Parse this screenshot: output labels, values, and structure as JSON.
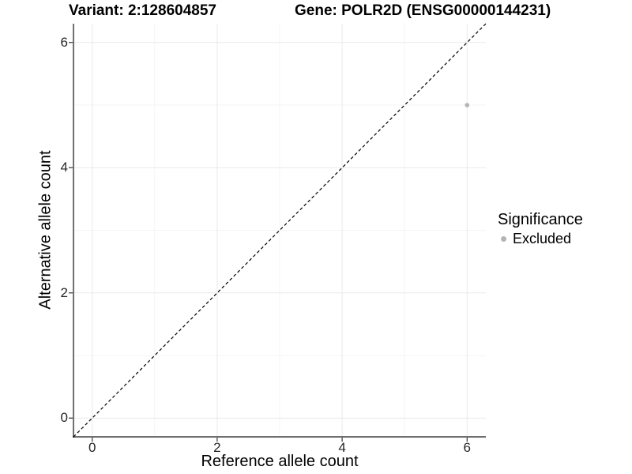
{
  "chart_data": {
    "type": "scatter",
    "titles": {
      "left": "Variant: 2:128604857",
      "right": "Gene: POLR2D (ENSG00000144231)"
    },
    "xlabel": "Reference allele count",
    "ylabel": "Alternative allele count",
    "xlim": [
      -0.3,
      6.3
    ],
    "ylim": [
      -0.3,
      6.3
    ],
    "xticks": [
      0,
      2,
      4,
      6
    ],
    "yticks": [
      0,
      2,
      4,
      6
    ],
    "major_gridlines_x": [
      0,
      2,
      4,
      6
    ],
    "major_gridlines_y": [
      0,
      2,
      4,
      6
    ],
    "minor_gridlines_x": [
      1,
      3,
      5
    ],
    "minor_gridlines_y": [
      1,
      3,
      5
    ],
    "grid": true,
    "series": [
      {
        "name": "Excluded",
        "color": "#b4b4b4",
        "points": [
          {
            "x": 6,
            "y": 5
          }
        ]
      }
    ],
    "reference_line": {
      "style": "dashed",
      "color": "#000000",
      "x0": -0.3,
      "y0": -0.3,
      "x1": 6.3,
      "y1": 6.3
    },
    "legend": {
      "title": "Significance",
      "position": "right",
      "entries": [
        {
          "label": "Excluded",
          "color": "#b4b4b4",
          "marker": "circle"
        }
      ]
    },
    "colors": {
      "background": "#ffffff",
      "grid_major": "#e9e9e9",
      "grid_minor": "#f4f4f4",
      "axis_line": "#404040",
      "tick_mark": "#333333",
      "tick_text": "#262626",
      "text": "#000000",
      "point": "#b4b4b4"
    }
  }
}
